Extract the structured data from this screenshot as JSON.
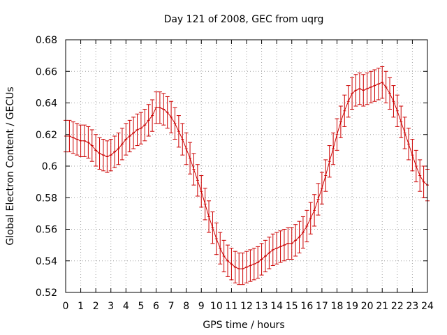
{
  "chart_data": {
    "type": "line",
    "title": "Day 121 of 2008, GEC from uqrg",
    "xlabel": "GPS time / hours",
    "ylabel": "Global Electron Content / GECUs",
    "xlim": [
      0,
      24
    ],
    "ylim": [
      0.52,
      0.68
    ],
    "xticks": [
      0,
      1,
      2,
      3,
      4,
      5,
      6,
      7,
      8,
      9,
      10,
      11,
      12,
      13,
      14,
      15,
      16,
      17,
      18,
      19,
      20,
      21,
      22,
      23,
      24
    ],
    "yticks": [
      0.52,
      0.54,
      0.56,
      0.58,
      0.6,
      0.62,
      0.64,
      0.66,
      0.68
    ],
    "ytick_labels": [
      "0.52",
      "0.54",
      "0.56",
      "0.58",
      "0.6",
      "0.62",
      "0.64",
      "0.66",
      "0.68"
    ],
    "grid": true,
    "error_bar": 0.01,
    "series": [
      {
        "name": "GEC",
        "color": "#cc0000",
        "x": [
          0,
          0.25,
          0.5,
          0.75,
          1,
          1.25,
          1.5,
          1.75,
          2,
          2.25,
          2.5,
          2.75,
          3,
          3.25,
          3.5,
          3.75,
          4,
          4.25,
          4.5,
          4.75,
          5,
          5.25,
          5.5,
          5.75,
          6,
          6.25,
          6.5,
          6.75,
          7,
          7.25,
          7.5,
          7.75,
          8,
          8.25,
          8.5,
          8.75,
          9,
          9.25,
          9.5,
          9.75,
          10,
          10.25,
          10.5,
          10.75,
          11,
          11.25,
          11.5,
          11.75,
          12,
          12.25,
          12.5,
          12.75,
          13,
          13.25,
          13.5,
          13.75,
          14,
          14.25,
          14.5,
          14.75,
          15,
          15.25,
          15.5,
          15.75,
          16,
          16.25,
          16.5,
          16.75,
          17,
          17.25,
          17.5,
          17.75,
          18,
          18.25,
          18.5,
          18.75,
          19,
          19.25,
          19.5,
          19.75,
          20,
          20.25,
          20.5,
          20.75,
          21,
          21.25,
          21.5,
          21.75,
          22,
          22.25,
          22.5,
          22.75,
          23,
          23.25,
          23.5,
          23.75,
          24
        ],
        "values": [
          0.619,
          0.619,
          0.618,
          0.617,
          0.616,
          0.616,
          0.615,
          0.613,
          0.61,
          0.608,
          0.607,
          0.606,
          0.607,
          0.609,
          0.611,
          0.614,
          0.617,
          0.619,
          0.621,
          0.623,
          0.624,
          0.626,
          0.629,
          0.632,
          0.637,
          0.637,
          0.636,
          0.634,
          0.631,
          0.627,
          0.622,
          0.617,
          0.611,
          0.605,
          0.598,
          0.591,
          0.584,
          0.576,
          0.568,
          0.561,
          0.554,
          0.548,
          0.543,
          0.54,
          0.538,
          0.536,
          0.535,
          0.535,
          0.536,
          0.537,
          0.538,
          0.539,
          0.541,
          0.543,
          0.545,
          0.547,
          0.548,
          0.549,
          0.55,
          0.551,
          0.551,
          0.553,
          0.555,
          0.558,
          0.562,
          0.567,
          0.572,
          0.579,
          0.586,
          0.594,
          0.603,
          0.611,
          0.62,
          0.628,
          0.635,
          0.641,
          0.646,
          0.648,
          0.649,
          0.648,
          0.649,
          0.65,
          0.651,
          0.652,
          0.653,
          0.65,
          0.646,
          0.641,
          0.635,
          0.628,
          0.621,
          0.614,
          0.607,
          0.6,
          0.594,
          0.59,
          0.588
        ]
      }
    ]
  }
}
